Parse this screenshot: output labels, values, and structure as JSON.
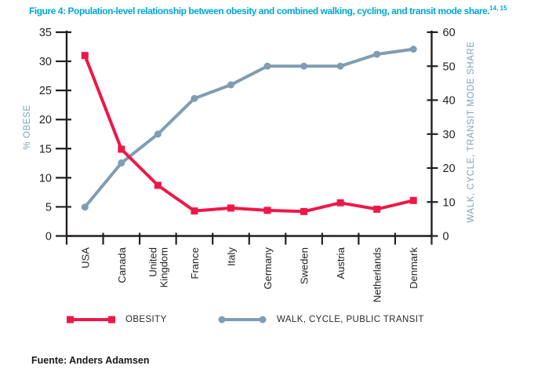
{
  "title": {
    "text": "Figure 4: Population-level relationship between obesity and combined walking, cycling, and transit mode share.",
    "superscript": "14, 15"
  },
  "source": "Fuente: Anders Adamsen",
  "colors": {
    "title": "#00A8CE",
    "axis": "#231F20",
    "text": "#231F20",
    "axis_label": "#7FA3B8",
    "obesity": "#EE1848",
    "walk_cycle_transit": "#7F9DB3"
  },
  "chart_data": {
    "type": "line",
    "categories": [
      "USA",
      "Canada",
      "United\nKingdom",
      "France",
      "Italy",
      "Germany",
      "Sweden",
      "Austria",
      "Netherlands",
      "Denmark"
    ],
    "series": [
      {
        "name": "OBESITY",
        "axis": "left",
        "color": "#EE1848",
        "marker": "square",
        "values": [
          31,
          14.9,
          8.7,
          4.3,
          4.8,
          4.4,
          4.2,
          5.7,
          4.6,
          6.1
        ]
      },
      {
        "name": "WALK, CYCLE, PUBLIC TRANSIT",
        "axis": "right",
        "color": "#7F9DB3",
        "marker": "circle",
        "values": [
          8.5,
          21.5,
          30,
          40.5,
          44.5,
          50,
          50,
          50,
          53.5,
          55
        ]
      }
    ],
    "left_axis": {
      "label": "% OBESE",
      "min": 0,
      "max": 35,
      "ticks": [
        0,
        5,
        10,
        15,
        20,
        25,
        30,
        35
      ]
    },
    "right_axis": {
      "label": "WALK, CYCLE, TRANSIT MODE SHARE",
      "min": 0,
      "max": 60,
      "ticks": [
        0,
        10,
        20,
        30,
        40,
        50,
        60
      ]
    },
    "legend": [
      {
        "label": "OBESITY",
        "color": "#EE1848",
        "marker": "square"
      },
      {
        "label": "WALK, CYCLE, PUBLIC TRANSIT",
        "color": "#7F9DB3",
        "marker": "circle"
      }
    ],
    "grid": false,
    "legend_position": "bottom"
  }
}
